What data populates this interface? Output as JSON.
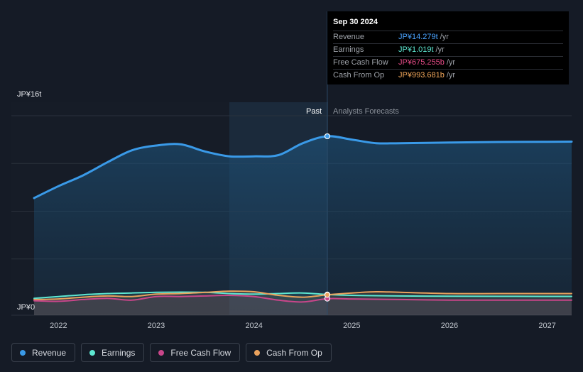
{
  "tooltip": {
    "date": "Sep 30 2024",
    "rows": [
      {
        "label": "Revenue",
        "value": "JP¥14.279t",
        "unit": "/yr",
        "color": "#4aa3ff"
      },
      {
        "label": "Earnings",
        "value": "JP¥1.019t",
        "unit": "/yr",
        "color": "#5ee8d2"
      },
      {
        "label": "Free Cash Flow",
        "value": "JP¥675.255b",
        "unit": "/yr",
        "color": "#ea4c89"
      },
      {
        "label": "Cash From Op",
        "value": "JP¥993.681b",
        "unit": "/yr",
        "color": "#f3a85b"
      }
    ]
  },
  "legend": [
    {
      "label": "Revenue",
      "color": "#3a9ae8"
    },
    {
      "label": "Earnings",
      "color": "#5ee8d2"
    },
    {
      "label": "Free Cash Flow",
      "color": "#c9468a"
    },
    {
      "label": "Cash From Op",
      "color": "#eaa25d"
    }
  ],
  "chart_data": {
    "type": "line",
    "y_label_top": "JP¥16t",
    "y_label_bottom": "JP¥0",
    "ylim": [
      0,
      16
    ],
    "xlim": [
      2021.75,
      2027.25
    ],
    "x_ticks": [
      "2022",
      "2023",
      "2024",
      "2025",
      "2026",
      "2027"
    ],
    "past_label": "Past",
    "forecast_label": "Analysts Forecasts",
    "divider_x": 2024.75,
    "highlight_start": 2023.75,
    "series": [
      {
        "name": "Revenue",
        "color": "#3a9ae8",
        "x": [
          2021.75,
          2022.0,
          2022.25,
          2022.5,
          2022.75,
          2023.0,
          2023.25,
          2023.5,
          2023.75,
          2024.0,
          2024.25,
          2024.5,
          2024.75,
          2025.0,
          2025.25,
          2025.5,
          2026.0,
          2026.5,
          2027.0,
          2027.25
        ],
        "values": [
          9.1,
          10.1,
          11.0,
          12.1,
          13.1,
          13.5,
          13.6,
          13.0,
          12.6,
          12.6,
          12.7,
          13.7,
          14.279,
          14.0,
          13.7,
          13.7,
          13.75,
          13.8,
          13.82,
          13.83
        ]
      },
      {
        "name": "Earnings",
        "color": "#5ee8d2",
        "x": [
          2021.75,
          2022.0,
          2022.25,
          2022.5,
          2022.75,
          2023.0,
          2023.25,
          2023.5,
          2023.75,
          2024.0,
          2024.25,
          2024.5,
          2024.75,
          2025.0,
          2025.5,
          2026.0,
          2026.5,
          2027.0,
          2027.25
        ],
        "values": [
          0.7,
          0.85,
          1.0,
          1.1,
          1.15,
          1.2,
          1.22,
          1.2,
          1.1,
          1.05,
          1.1,
          1.15,
          1.019,
          0.95,
          0.9,
          0.88,
          0.87,
          0.86,
          0.86
        ]
      },
      {
        "name": "Free Cash Flow",
        "color": "#c9468a",
        "x": [
          2021.75,
          2022.0,
          2022.25,
          2022.5,
          2022.75,
          2023.0,
          2023.25,
          2023.5,
          2023.75,
          2024.0,
          2024.25,
          2024.5,
          2024.75,
          2025.0,
          2025.5,
          2026.0,
          2026.5,
          2027.0,
          2027.25
        ],
        "values": [
          0.5,
          0.45,
          0.6,
          0.7,
          0.55,
          0.85,
          0.85,
          0.9,
          0.95,
          0.85,
          0.55,
          0.4,
          0.675,
          0.65,
          0.6,
          0.55,
          0.55,
          0.55,
          0.55
        ]
      },
      {
        "name": "Cash From Op",
        "color": "#eaa25d",
        "x": [
          2021.75,
          2022.0,
          2022.25,
          2022.5,
          2022.75,
          2023.0,
          2023.25,
          2023.5,
          2023.75,
          2024.0,
          2024.25,
          2024.5,
          2024.75,
          2025.0,
          2025.25,
          2025.5,
          2026.0,
          2026.5,
          2027.0,
          2027.25
        ],
        "values": [
          0.6,
          0.65,
          0.8,
          0.9,
          0.85,
          1.05,
          1.1,
          1.2,
          1.3,
          1.25,
          0.95,
          0.8,
          0.994,
          1.15,
          1.25,
          1.2,
          1.1,
          1.1,
          1.1,
          1.1
        ]
      }
    ]
  }
}
